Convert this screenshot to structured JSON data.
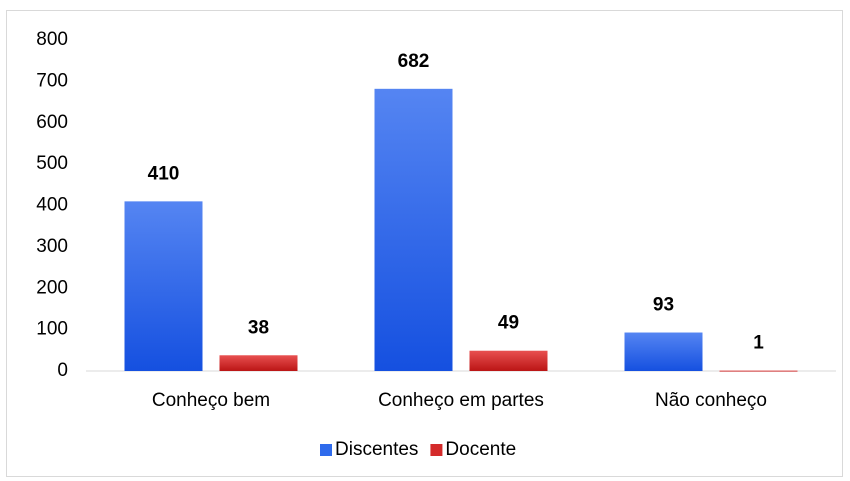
{
  "chart_data": {
    "type": "bar",
    "categories": [
      "Conheço bem",
      "Conheço em partes",
      "Não conheço"
    ],
    "series": [
      {
        "name": "Discentes",
        "color": "#2f6bec",
        "values": [
          410,
          682,
          93
        ]
      },
      {
        "name": "Docente",
        "color": "#d42a2a",
        "values": [
          38,
          49,
          1
        ]
      }
    ],
    "ylim": [
      0,
      800
    ],
    "yticks": [
      0,
      100,
      200,
      300,
      400,
      500,
      600,
      700,
      800
    ],
    "grid": false,
    "legend": "bottom"
  }
}
